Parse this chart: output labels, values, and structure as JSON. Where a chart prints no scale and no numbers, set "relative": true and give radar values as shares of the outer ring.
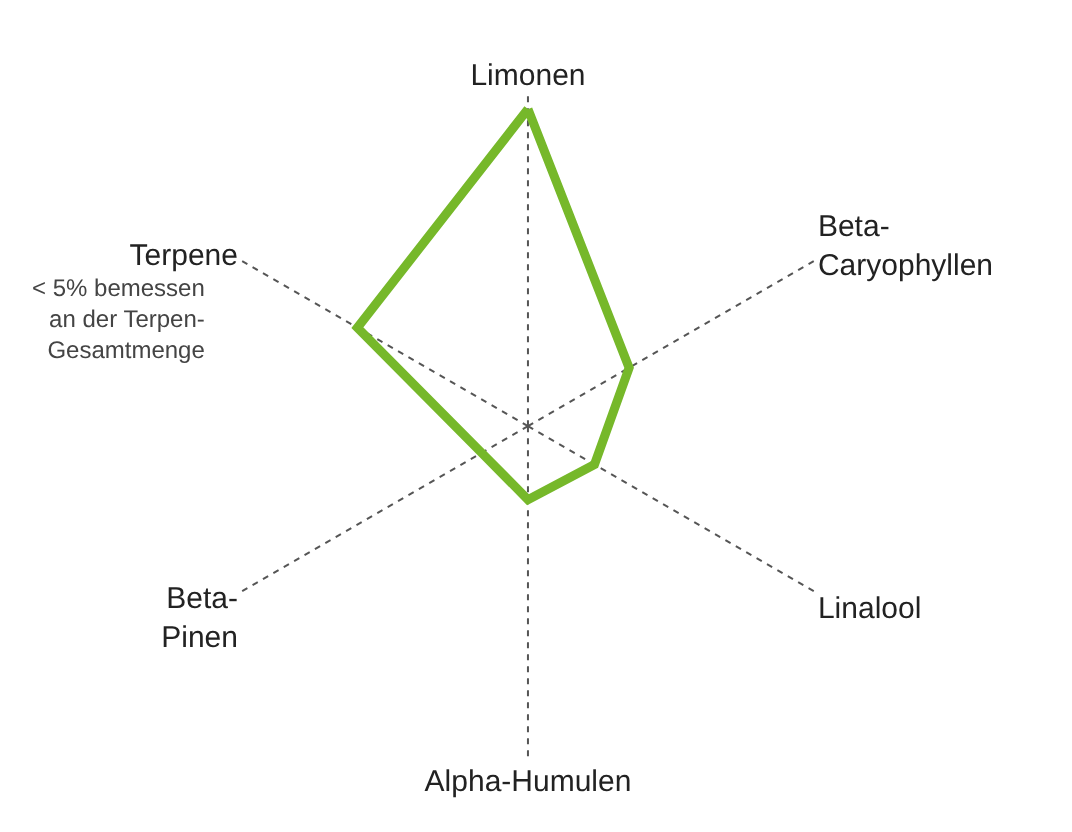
{
  "chart_data": {
    "type": "radar",
    "relative": true,
    "grid": true,
    "marker": "none",
    "categories": [
      "Limonen",
      "Beta-\nCaryophyllen",
      "Linalool",
      "Alpha-Humulen",
      "Beta-\nPinen",
      "Terpene"
    ],
    "series": [
      {
        "color": "#76b82a",
        "values": [
          0.95,
          0.35,
          0.23,
          0.22,
          0.16,
          0.59
        ]
      }
    ],
    "annotations": [
      "< 5% bemessen\nan der Terpen-\nGesamtmenge"
    ]
  }
}
